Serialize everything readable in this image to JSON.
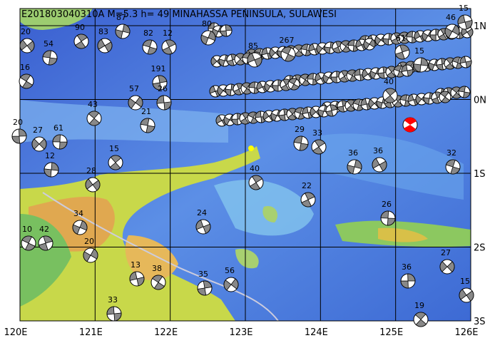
{
  "map": {
    "title": "E201803040310A M=5.3 h= 49 MINAHASSA PENINSULA, SULAWESI",
    "lon_labels": [
      "120E",
      "121E",
      "122E",
      "123E",
      "124E",
      "125E",
      "126E"
    ],
    "lat_labels": [
      "1N",
      "0N",
      "1S",
      "2S",
      "3S"
    ],
    "event_labels": [
      "20",
      "54",
      "90",
      "87",
      "83",
      "82",
      "12",
      "80",
      "85",
      "267",
      "61",
      "46",
      "15",
      "16",
      "191",
      "57",
      "26",
      "43",
      "20",
      "27",
      "61",
      "15",
      "12",
      "28",
      "29",
      "33",
      "36",
      "36",
      "32",
      "22",
      "34",
      "24",
      "10",
      "42",
      "20",
      "13",
      "38",
      "35",
      "56",
      "33",
      "19",
      "36",
      "27",
      "26",
      "40",
      "15",
      "15",
      "21",
      "40"
    ]
  }
}
